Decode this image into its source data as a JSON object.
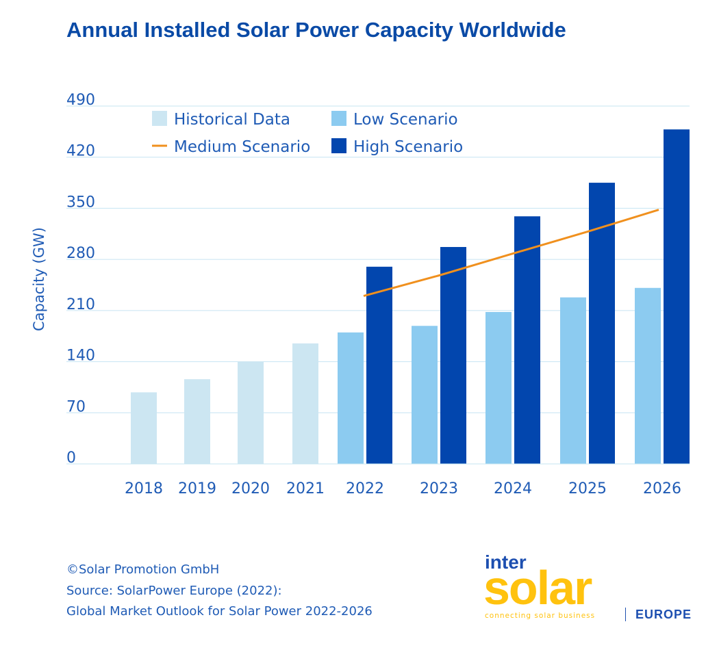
{
  "colors": {
    "historical": "#cce6f2",
    "low": "#8ccbf0",
    "medium": "#f0901e",
    "high": "#0246ae",
    "grid": "#c6e4f2",
    "text": "#1f5bb5"
  },
  "chart_data": {
    "type": "bar",
    "title": "Annual Installed Solar Power Capacity Worldwide",
    "ylabel": "Capacity (GW)",
    "xlabel": "",
    "ylim": [
      0,
      490
    ],
    "yticks": [
      0,
      70,
      140,
      210,
      280,
      350,
      420,
      490
    ],
    "grid": true,
    "legend_position": "top-left",
    "categories": [
      "2018",
      "2019",
      "2020",
      "2021",
      "2022",
      "2023",
      "2024",
      "2025",
      "2026"
    ],
    "series": [
      {
        "name": "Historical Data",
        "kind": "bar",
        "color": "#cce6f2",
        "values": [
          98,
          116,
          140,
          165,
          null,
          null,
          null,
          null,
          null
        ]
      },
      {
        "name": "Low Scenario",
        "kind": "bar",
        "color": "#8ccbf0",
        "values": [
          null,
          null,
          null,
          null,
          180,
          189,
          208,
          228,
          241
        ]
      },
      {
        "name": "Medium Scenario",
        "kind": "line",
        "color": "#f0901e",
        "values": [
          null,
          null,
          null,
          null,
          230,
          258,
          288,
          318,
          348
        ]
      },
      {
        "name": "High Scenario",
        "kind": "bar",
        "color": "#0246ae",
        "values": [
          null,
          null,
          null,
          null,
          270,
          297,
          339,
          385,
          458
        ]
      }
    ]
  },
  "footer": {
    "copyright": "©Solar Promotion GmbH",
    "source": "Source: SolarPower Europe (2022):",
    "publication": "Global Market Outlook for Solar Power 2022-2026"
  },
  "logo": {
    "inter": "inter",
    "solar": "solar",
    "tagline": "connecting solar business",
    "region": "EUROPE"
  }
}
